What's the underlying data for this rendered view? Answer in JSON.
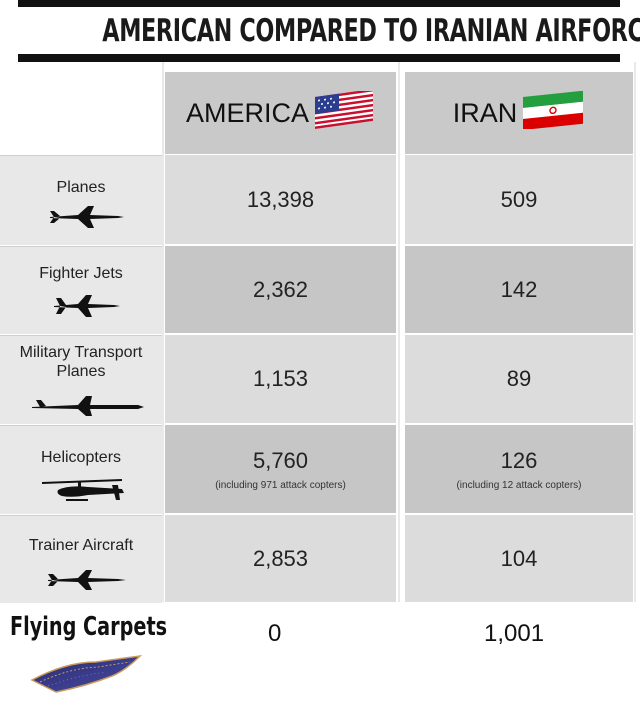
{
  "title": "AMERICAN COMPARED TO IRANIAN AIRFORCE",
  "columns": [
    {
      "label": "AMERICA",
      "flag": "us-flag-icon"
    },
    {
      "label": "IRAN",
      "flag": "iran-flag-icon"
    }
  ],
  "rows": [
    {
      "label": "Planes",
      "icon": "jet-plane-icon",
      "america": "13,398",
      "iran": "509"
    },
    {
      "label": "Fighter Jets",
      "icon": "fighter-jet-icon",
      "america": "2,362",
      "iran": "142"
    },
    {
      "label": "Military Transport Planes",
      "icon": "transport-plane-icon",
      "america": "1,153",
      "iran": "89"
    },
    {
      "label": "Helicopters",
      "icon": "helicopter-icon",
      "america": "5,760",
      "america_note": "(including 971 attack copters)",
      "iran": "126",
      "iran_note": "(including 12 attack copters)"
    },
    {
      "label": "Trainer Aircraft",
      "icon": "trainer-aircraft-icon",
      "america": "2,853",
      "iran": "104"
    }
  ],
  "last_row": {
    "label": "Flying Carpets",
    "icon": "flying-carpet-icon",
    "america": "0",
    "iran": "1,001"
  },
  "colors": {
    "header_bg": "#c9c9c9",
    "label_bg": "#e8e8e8",
    "cell_light": "#dcdcdc",
    "cell_dark": "#c6c6c6",
    "bar": "#111111"
  }
}
